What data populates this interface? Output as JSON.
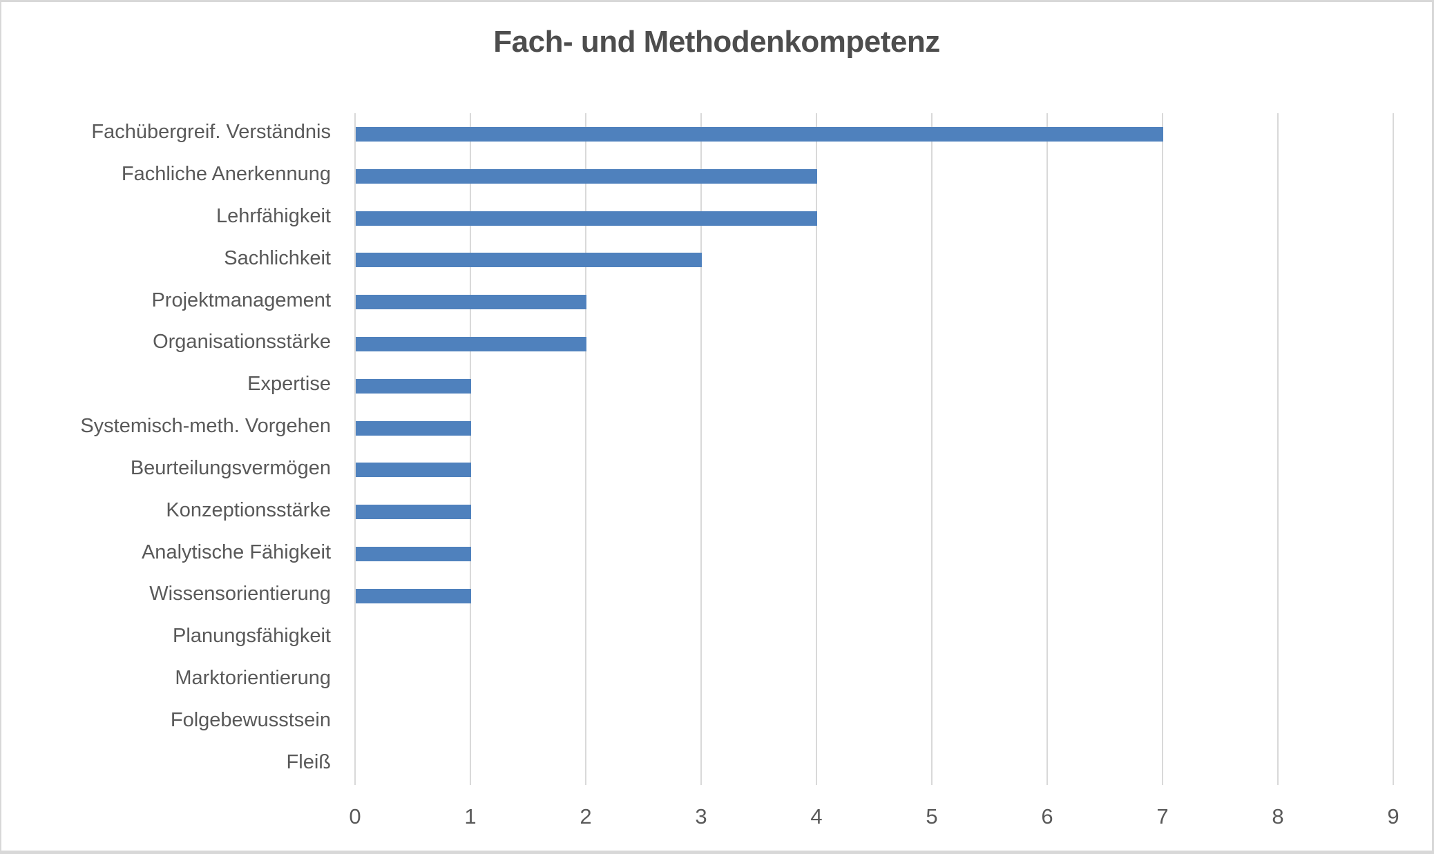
{
  "chart_data": {
    "type": "bar",
    "orientation": "horizontal",
    "title": "Fach- und Methodenkompetenz",
    "categories": [
      "Fachübergreif. Verständnis",
      "Fachliche Anerkennung",
      "Lehrfähigkeit",
      "Sachlichkeit",
      "Projektmanagement",
      "Organisationsstärke",
      "Expertise",
      "Systemisch-meth. Vorgehen",
      "Beurteilungsvermögen",
      "Konzeptionsstärke",
      "Analytische Fähigkeit",
      "Wissensorientierung",
      "Planungsfähigkeit",
      "Marktorientierung",
      "Folgebewusstsein",
      "Fleiß"
    ],
    "values": [
      7,
      4,
      4,
      3,
      2,
      2,
      1,
      1,
      1,
      1,
      1,
      1,
      0,
      0,
      0,
      0
    ],
    "xlabel": "",
    "ylabel": "",
    "xlim": [
      0,
      9
    ],
    "xticks": [
      0,
      1,
      2,
      3,
      4,
      5,
      6,
      7,
      8,
      9
    ],
    "xtick_labels": [
      "0",
      "1",
      "2",
      "3",
      "4",
      "5",
      "6",
      "7",
      "8",
      "9"
    ],
    "grid": "vertical-only",
    "legend": "none",
    "colors": {
      "bar": "#4F81BD",
      "gridline": "#D9D9D9",
      "tick_text": "#595959",
      "label_text": "#595959",
      "title_text": "#4D4D4D",
      "frame_border": "#D8D8D8",
      "background": "#FFFFFF"
    }
  }
}
